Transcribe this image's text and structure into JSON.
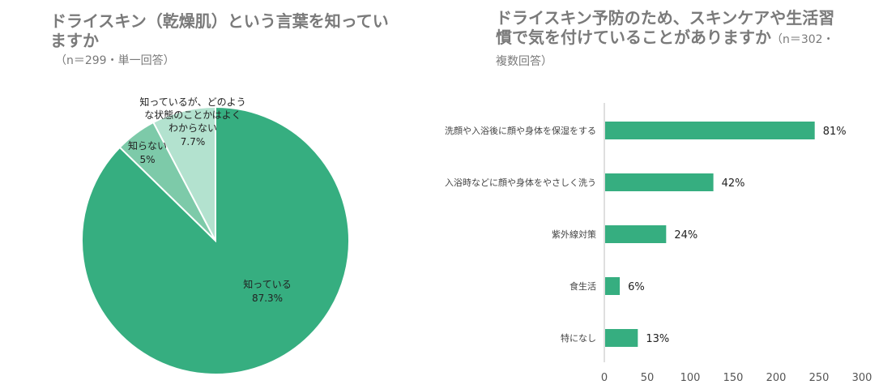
{
  "left": {
    "title": "ドライスキン（乾燥肌）という言葉を知っていますか",
    "subtitle": "（n＝299・単一回答）"
  },
  "right": {
    "title": "ドライスキン予防のため、スキンケアや生活習慣で気を付けていることがありますか",
    "subtitle": "（n＝302・複数回答）"
  },
  "chart_data": [
    {
      "type": "pie",
      "title": "ドライスキン（乾燥肌）という言葉を知っていますか",
      "slices": [
        {
          "label": "知っている",
          "value": 87.3,
          "value_label": "87.3%",
          "color": "#36ae80"
        },
        {
          "label": "知らない",
          "value": 5,
          "value_label": "5%",
          "color": "#7dcaa9"
        },
        {
          "label": "知っているが、どのような状態のことかはよくわからない",
          "value": 7.7,
          "value_label": "7.7%",
          "color": "#b3e2cf"
        }
      ]
    },
    {
      "type": "bar",
      "orientation": "horizontal",
      "title": "ドライスキン予防のため、スキンケアや生活習慣で気を付けていることがありますか",
      "categories": [
        "洗顔や入浴後に顔や身体を保湿をする",
        "入浴時などに顔や身体をやさしく洗う",
        "紫外線対策",
        "食生活",
        "特になし"
      ],
      "values": [
        245,
        127,
        72,
        18,
        39
      ],
      "value_labels": [
        "81%",
        "42%",
        "24%",
        "6%",
        "13%"
      ],
      "xlim": [
        0,
        300
      ],
      "xticks": [
        0,
        50,
        100,
        150,
        200,
        250,
        300
      ],
      "color": "#36ae80",
      "grid": false
    }
  ]
}
